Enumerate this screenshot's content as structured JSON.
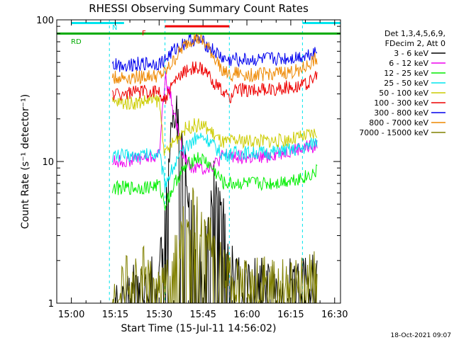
{
  "chart_data": {
    "type": "line",
    "title": "RHESSI Observing Summary Count Rates",
    "xlabel": "Start Time (15-Jul-11 14:56:02)",
    "ylabel": "Count Rate (s⁻¹ detector⁻¹)",
    "xlim_minutes": [
      -5,
      92
    ],
    "ylim": [
      1,
      100
    ],
    "yscale": "log",
    "x_ticks": [
      "15:00",
      "15:15",
      "15:30",
      "15:45",
      "16:00",
      "16:15",
      "16:30"
    ],
    "y_ticks": [
      "1",
      "10",
      "100"
    ],
    "legend_header": [
      "Det 1,3,4,5,6,9,",
      "FDecim 2, Att 0"
    ],
    "legend_position": "right",
    "timestamp": "18-Oct-2021 09:07",
    "flag_labels": {
      "n": "N",
      "f": "F",
      "rd": "RD"
    },
    "flags": [
      {
        "name": "N",
        "color": "#00e5ee",
        "y": 95,
        "intervals": [
          [
            0,
            18
          ],
          [
            79,
            93
          ]
        ]
      },
      {
        "name": "F",
        "color": "#ee0000",
        "y": 90,
        "intervals": [
          [
            32,
            54
          ]
        ]
      },
      {
        "name": "RD",
        "color": "#00aa00",
        "y": 80,
        "intervals": [
          [
            -5,
            92
          ]
        ]
      }
    ],
    "orbit_gaps": [
      [
        13,
        32
      ],
      [
        54,
        79
      ]
    ],
    "series": [
      {
        "name": "3 - 6 keV",
        "color": "#000000",
        "points": [
          [
            14,
            1
          ],
          [
            18,
            1.3
          ],
          [
            24,
            1.3
          ],
          [
            30,
            1.5
          ],
          [
            33,
            8
          ],
          [
            35,
            25
          ],
          [
            37,
            18
          ],
          [
            39,
            10
          ],
          [
            41,
            5
          ],
          [
            43,
            2.5
          ],
          [
            45,
            1.8
          ],
          [
            47,
            4
          ],
          [
            49,
            7.5
          ],
          [
            51,
            5
          ],
          [
            53,
            3
          ],
          [
            55,
            1.8
          ],
          [
            58,
            1.3
          ],
          [
            64,
            1.4
          ],
          [
            70,
            1.3
          ],
          [
            76,
            1.5
          ],
          [
            80,
            1.4
          ],
          [
            84,
            1.5
          ]
        ]
      },
      {
        "name": "6 - 12 keV",
        "color": "#ee00ee",
        "points": [
          [
            14,
            10
          ],
          [
            18,
            10
          ],
          [
            22,
            10.5
          ],
          [
            26,
            10.5
          ],
          [
            30,
            11
          ],
          [
            32,
            40
          ],
          [
            34,
            28
          ],
          [
            36,
            18
          ],
          [
            38,
            12
          ],
          [
            40,
            9.5
          ],
          [
            43,
            9
          ],
          [
            46,
            9
          ],
          [
            49,
            9.5
          ],
          [
            52,
            11
          ],
          [
            56,
            11
          ],
          [
            60,
            10.5
          ],
          [
            64,
            10.5
          ],
          [
            68,
            11
          ],
          [
            72,
            11.5
          ],
          [
            76,
            12
          ],
          [
            80,
            12.5
          ],
          [
            84,
            13
          ]
        ]
      },
      {
        "name": "12 - 25 keV",
        "color": "#00ee00",
        "points": [
          [
            14,
            6.5
          ],
          [
            18,
            6.5
          ],
          [
            22,
            6.5
          ],
          [
            26,
            6.6
          ],
          [
            30,
            6.8
          ],
          [
            32,
            5
          ],
          [
            34,
            6
          ],
          [
            36,
            7.5
          ],
          [
            38,
            8.5
          ],
          [
            40,
            9.5
          ],
          [
            42,
            10.5
          ],
          [
            44,
            10.5
          ],
          [
            46,
            10
          ],
          [
            48,
            9
          ],
          [
            50,
            8
          ],
          [
            52,
            7
          ],
          [
            56,
            7
          ],
          [
            60,
            7
          ],
          [
            64,
            7
          ],
          [
            68,
            7
          ],
          [
            72,
            7.2
          ],
          [
            76,
            7.5
          ],
          [
            80,
            7.8
          ],
          [
            84,
            8.5
          ]
        ]
      },
      {
        "name": "25 - 50 keV",
        "color": "#00e5ee",
        "points": [
          [
            14,
            11
          ],
          [
            18,
            11
          ],
          [
            22,
            11
          ],
          [
            26,
            11.2
          ],
          [
            30,
            11.5
          ],
          [
            32,
            7
          ],
          [
            34,
            8.5
          ],
          [
            36,
            10
          ],
          [
            38,
            11.5
          ],
          [
            40,
            13
          ],
          [
            42,
            14.5
          ],
          [
            44,
            15
          ],
          [
            46,
            14.5
          ],
          [
            48,
            13.5
          ],
          [
            50,
            12
          ],
          [
            52,
            11
          ],
          [
            56,
            11.5
          ],
          [
            60,
            11.5
          ],
          [
            64,
            11.5
          ],
          [
            68,
            11.5
          ],
          [
            72,
            12
          ],
          [
            76,
            12
          ],
          [
            80,
            12.5
          ],
          [
            84,
            14
          ]
        ]
      },
      {
        "name": "50 - 100 keV",
        "color": "#cccc00",
        "points": [
          [
            14,
            26
          ],
          [
            18,
            26
          ],
          [
            22,
            26
          ],
          [
            26,
            27
          ],
          [
            30,
            27
          ],
          [
            32,
            11
          ],
          [
            34,
            13
          ],
          [
            36,
            14.5
          ],
          [
            38,
            16.5
          ],
          [
            40,
            17.5
          ],
          [
            42,
            18
          ],
          [
            44,
            18
          ],
          [
            46,
            17.5
          ],
          [
            48,
            16
          ],
          [
            50,
            14.5
          ],
          [
            52,
            13.5
          ],
          [
            56,
            14
          ],
          [
            60,
            14
          ],
          [
            64,
            14
          ],
          [
            68,
            14
          ],
          [
            72,
            14
          ],
          [
            76,
            14.5
          ],
          [
            80,
            15
          ],
          [
            84,
            16
          ]
        ]
      },
      {
        "name": "100 - 300 keV",
        "color": "#ee0000",
        "points": [
          [
            14,
            30
          ],
          [
            18,
            30
          ],
          [
            22,
            31
          ],
          [
            26,
            31
          ],
          [
            30,
            31.5
          ],
          [
            32,
            27
          ],
          [
            34,
            33
          ],
          [
            36,
            38
          ],
          [
            38,
            42
          ],
          [
            40,
            45
          ],
          [
            42,
            46
          ],
          [
            44,
            45
          ],
          [
            46,
            42
          ],
          [
            48,
            38
          ],
          [
            50,
            34
          ],
          [
            52,
            30
          ],
          [
            54,
            28
          ],
          [
            56,
            32
          ],
          [
            60,
            32
          ],
          [
            64,
            32
          ],
          [
            68,
            32
          ],
          [
            72,
            33
          ],
          [
            76,
            34
          ],
          [
            80,
            35
          ],
          [
            84,
            40
          ]
        ]
      },
      {
        "name": "300 - 800 keV",
        "color": "#0000ee",
        "points": [
          [
            14,
            48
          ],
          [
            18,
            48
          ],
          [
            22,
            49
          ],
          [
            26,
            49
          ],
          [
            30,
            49
          ],
          [
            32,
            52
          ],
          [
            34,
            58
          ],
          [
            36,
            63
          ],
          [
            38,
            67
          ],
          [
            40,
            71
          ],
          [
            42,
            72
          ],
          [
            44,
            71
          ],
          [
            46,
            67
          ],
          [
            48,
            62
          ],
          [
            50,
            57
          ],
          [
            52,
            53
          ],
          [
            54,
            51
          ],
          [
            56,
            53
          ],
          [
            60,
            52
          ],
          [
            64,
            52
          ],
          [
            68,
            53
          ],
          [
            72,
            53
          ],
          [
            76,
            54
          ],
          [
            80,
            56
          ],
          [
            84,
            60
          ]
        ]
      },
      {
        "name": "800 - 7000 keV",
        "color": "#ee8800",
        "points": [
          [
            14,
            39
          ],
          [
            18,
            39
          ],
          [
            22,
            39.5
          ],
          [
            26,
            40
          ],
          [
            30,
            40
          ],
          [
            32,
            42
          ],
          [
            34,
            48
          ],
          [
            36,
            55
          ],
          [
            38,
            63
          ],
          [
            40,
            70
          ],
          [
            42,
            74
          ],
          [
            44,
            72
          ],
          [
            46,
            66
          ],
          [
            48,
            58
          ],
          [
            50,
            50
          ],
          [
            52,
            44
          ],
          [
            54,
            40
          ],
          [
            56,
            42
          ],
          [
            60,
            41
          ],
          [
            64,
            41
          ],
          [
            68,
            42
          ],
          [
            72,
            42
          ],
          [
            76,
            43
          ],
          [
            80,
            46
          ],
          [
            84,
            54
          ]
        ]
      },
      {
        "name": "7000 - 15000 keV",
        "color": "#808000",
        "points": [
          [
            14,
            1
          ],
          [
            18,
            1.4
          ],
          [
            22,
            1.6
          ],
          [
            26,
            1.8
          ],
          [
            30,
            1.6
          ],
          [
            32,
            1.3
          ],
          [
            34,
            2
          ],
          [
            36,
            2.7
          ],
          [
            38,
            3.3
          ],
          [
            40,
            4.2
          ],
          [
            42,
            4.6
          ],
          [
            44,
            4
          ],
          [
            46,
            3.3
          ],
          [
            48,
            2.7
          ],
          [
            50,
            2.2
          ],
          [
            52,
            1.8
          ],
          [
            54,
            1.5
          ],
          [
            58,
            1.4
          ],
          [
            64,
            1.5
          ],
          [
            70,
            1.4
          ],
          [
            76,
            1.5
          ],
          [
            80,
            1.6
          ],
          [
            84,
            1.8
          ]
        ]
      }
    ]
  }
}
